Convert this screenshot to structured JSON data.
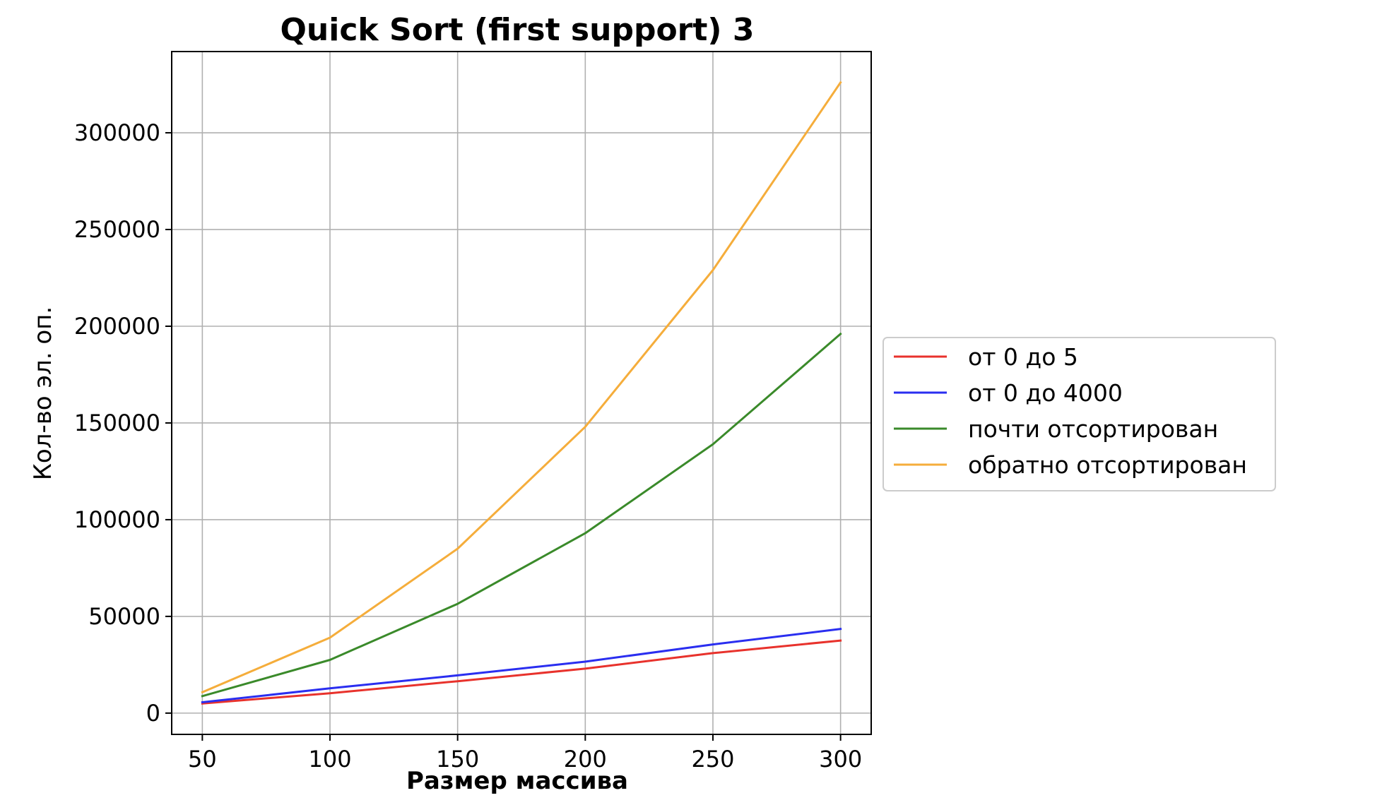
{
  "chart_data": {
    "type": "line",
    "title": "Quick Sort (first support) 3",
    "xlabel": "Размер массива",
    "ylabel": "Кол-во эл. оп.",
    "x": [
      50,
      100,
      150,
      200,
      250,
      300
    ],
    "xticks": [
      50,
      100,
      150,
      200,
      250,
      300
    ],
    "yticks": [
      0,
      50000,
      100000,
      150000,
      200000,
      250000,
      300000
    ],
    "xlim": [
      38,
      312
    ],
    "ylim": [
      -11000,
      342000
    ],
    "grid": true,
    "legend_position": "outside-right",
    "series": [
      {
        "name": "от 0 до 5",
        "color": "#e8322c",
        "values": [
          5000,
          10300,
          16500,
          23000,
          31000,
          37500
        ]
      },
      {
        "name": "от 0 до 4000",
        "color": "#2a2ef0",
        "values": [
          5600,
          12800,
          19500,
          26600,
          35500,
          43500
        ]
      },
      {
        "name": "почти отсортирован",
        "color": "#3a8a2a",
        "values": [
          8800,
          27500,
          56500,
          93000,
          139000,
          196000
        ]
      },
      {
        "name": "обратно отсортирован",
        "color": "#f5ad3b",
        "values": [
          10800,
          39000,
          85000,
          148000,
          229000,
          326000
        ]
      }
    ]
  }
}
